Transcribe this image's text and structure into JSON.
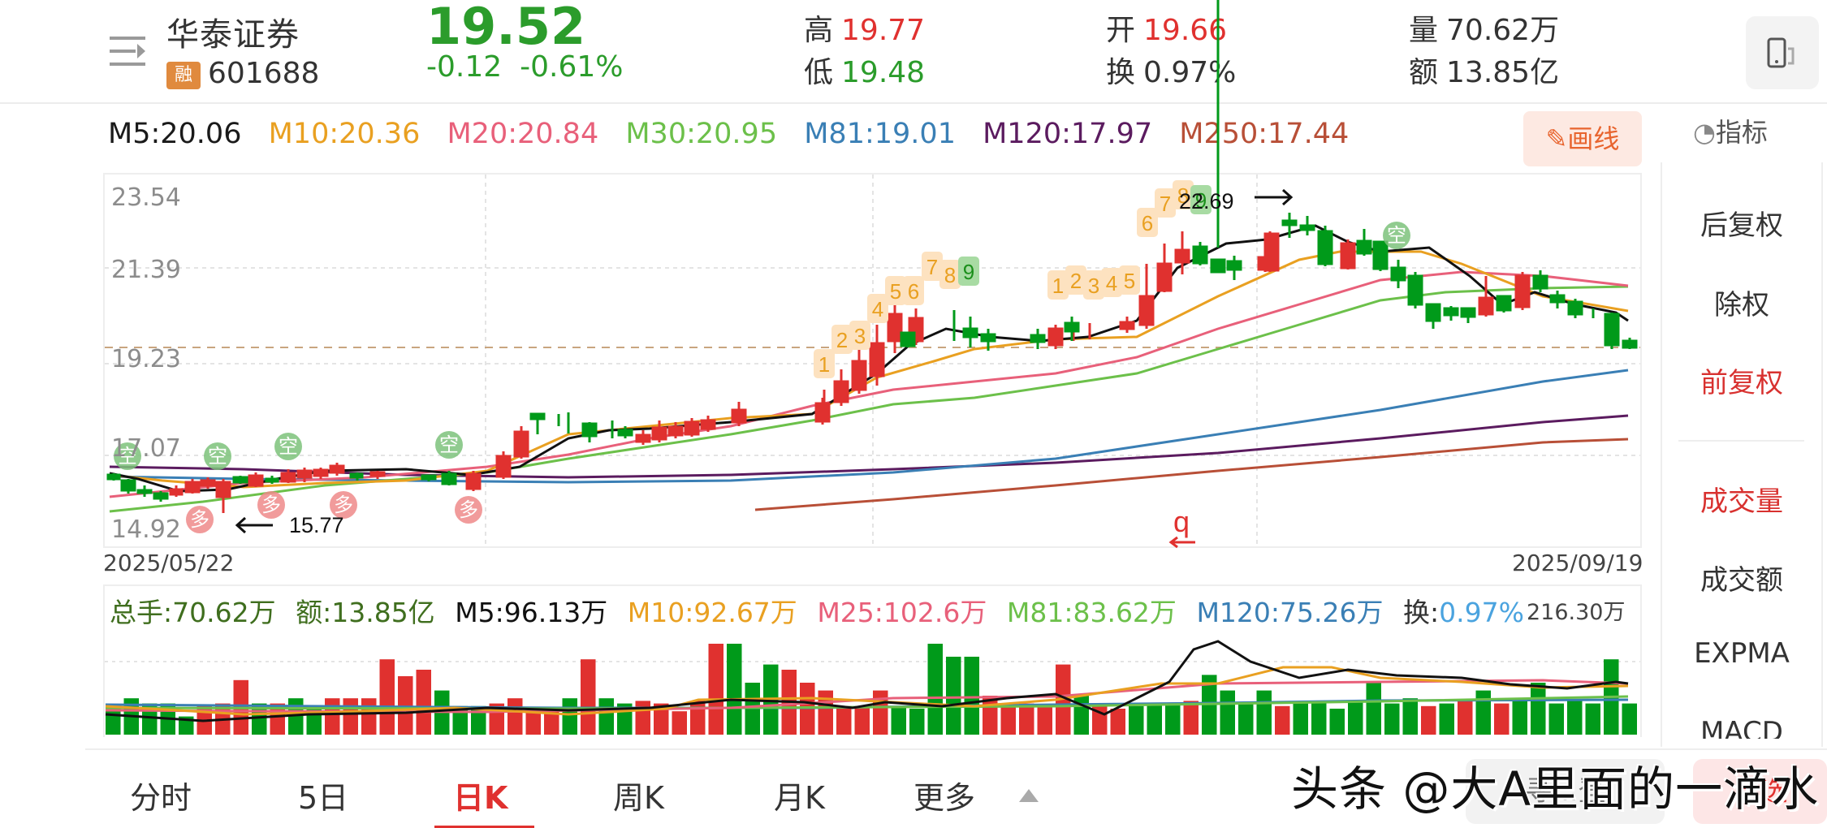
{
  "header": {
    "stock_name": "华泰证券",
    "margin_badge": "融",
    "stock_code": "601688",
    "price": "19.52",
    "change": "-0.12",
    "change_pct": "-0.61%",
    "high_label": "高",
    "high": "19.77",
    "low_label": "低",
    "low": "19.48",
    "open_label": "开",
    "open": "19.66",
    "turnover_label": "换",
    "turnover": "0.97%",
    "volume_label": "量",
    "volume": "70.62万",
    "amount_label": "额",
    "amount": "13.85亿",
    "menu_icon": "menu-arrow-icon",
    "device_icon": "phone-switch-icon"
  },
  "ma_legend": [
    {
      "label": "M5:20.06",
      "color": "#1a1a1a"
    },
    {
      "label": "M10:20.36",
      "color": "#e9a021"
    },
    {
      "label": "M20:20.84",
      "color": "#e8607a"
    },
    {
      "label": "M30:20.95",
      "color": "#6cc04a"
    },
    {
      "label": "M81:19.01",
      "color": "#3a7fb5"
    },
    {
      "label": "M120:17.97",
      "color": "#5b1b5f"
    },
    {
      "label": "M250:17.44",
      "color": "#b84f37"
    }
  ],
  "toolbar": {
    "draw_label": "画线",
    "draw_icon": "pencil-icon",
    "indicator_label": "指标",
    "indicator_icon": "gauge-icon"
  },
  "chart": {
    "y_labels": [
      "23.54",
      "21.39",
      "19.23",
      "17.07",
      "14.92"
    ],
    "start_date": "2025/05/22",
    "end_date": "2025/09/19",
    "low_annotation": "15.77",
    "high_annotation": "22.69",
    "marker_q": "q",
    "signal_empty": "空",
    "signal_long": "多"
  },
  "volume": {
    "total_hands": "总手:70.62万",
    "amount": "额:13.85亿",
    "m5": "M5:96.13万",
    "m10": "M10:92.67万",
    "m25": "M25:102.6万",
    "m81": "M81:83.62万",
    "m120": "M120:75.26万",
    "turnover_label": "换:",
    "turnover": "0.97%",
    "max_label": "216.30万"
  },
  "side_panel": {
    "items": [
      {
        "label": "后复权",
        "active": false
      },
      {
        "label": "除权",
        "active": false
      },
      {
        "label": "前复权",
        "active": true
      },
      {
        "label": "成交量",
        "active": true
      },
      {
        "label": "成交额",
        "active": false
      },
      {
        "label": "EXPMA",
        "active": false
      },
      {
        "label": "MACD",
        "active": false
      }
    ]
  },
  "tabs": [
    {
      "label": "分时",
      "active": false
    },
    {
      "label": "5日",
      "active": false
    },
    {
      "label": "日K",
      "active": true
    },
    {
      "label": "周K",
      "active": false
    },
    {
      "label": "月K",
      "active": false
    },
    {
      "label": "更多",
      "active": false
    }
  ],
  "actions": {
    "gray_button": "寻...登",
    "red_button": "自选"
  },
  "watermark": "头条 @大A里面的一滴水",
  "colors": {
    "up": "#e0312f",
    "down": "#009a1a",
    "accent": "#e0312f"
  }
}
